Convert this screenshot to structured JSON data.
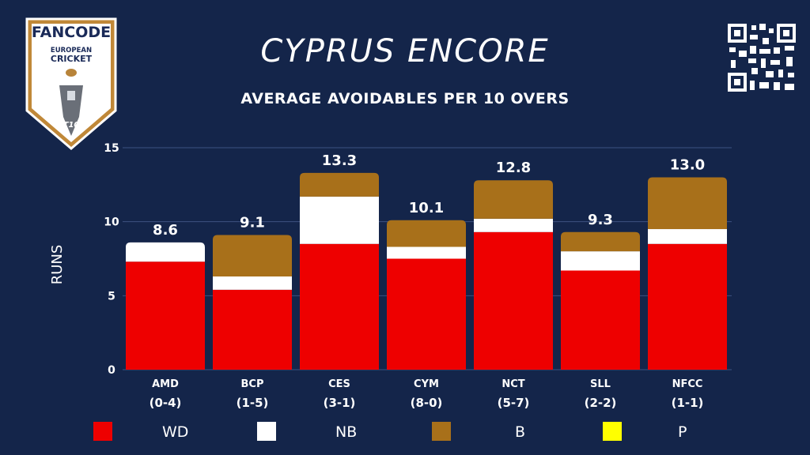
{
  "title": "CYPRUS ENCORE",
  "subtitle": "AVERAGE AVOIDABLES PER 10 OVERS",
  "logo": {
    "brand": "FANCODE",
    "line1": "EUROPEAN",
    "line2": "CRICKET",
    "badge": "T10"
  },
  "colors": {
    "WD": "#ee0000",
    "NB": "#ffffff",
    "B": "#a8701a",
    "P": "#ffff00",
    "background": "#14254a"
  },
  "chart_data": {
    "type": "bar",
    "stacked": true,
    "ylabel": "RUNS",
    "ylim": [
      0,
      15
    ],
    "yticks": [
      0,
      5,
      10,
      15
    ],
    "grid": true,
    "categories": [
      "AMD",
      "BCP",
      "CES",
      "CYM",
      "NCT",
      "SLL",
      "NFCC"
    ],
    "records": [
      "(0-4)",
      "(1-5)",
      "(3-1)",
      "(8-0)",
      "(5-7)",
      "(2-2)",
      "(1-1)"
    ],
    "totals": [
      "8.6",
      "9.1",
      "13.3",
      "10.1",
      "12.8",
      "9.3",
      "13.0"
    ],
    "series": [
      {
        "name": "WD",
        "values": [
          7.3,
          5.4,
          8.5,
          7.5,
          9.3,
          6.7,
          8.5
        ]
      },
      {
        "name": "NB",
        "values": [
          1.3,
          0.9,
          3.2,
          0.8,
          0.9,
          1.3,
          1.0
        ]
      },
      {
        "name": "B",
        "values": [
          0.0,
          2.8,
          1.6,
          1.8,
          2.6,
          1.3,
          3.5
        ]
      },
      {
        "name": "P",
        "values": [
          0,
          0,
          0,
          0,
          0,
          0,
          0
        ]
      }
    ],
    "legend": [
      "WD",
      "NB",
      "B",
      "P"
    ],
    "legend_position": "bottom"
  }
}
